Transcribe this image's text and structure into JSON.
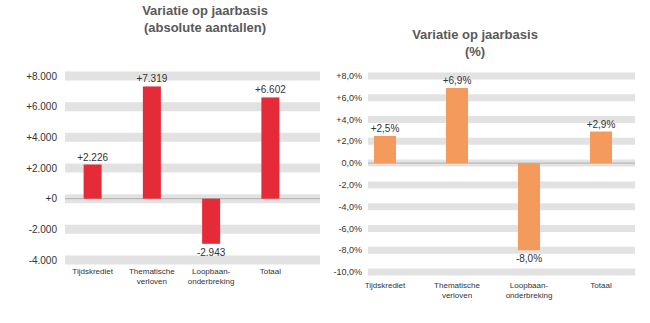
{
  "chart_data": [
    {
      "type": "bar",
      "title": "Variatie op jaarbasis",
      "subtitle": "(absolute aantallen)",
      "categories": [
        "Tijdskrediet",
        "Thematische verloven",
        "Loopbaan-onderbreking",
        "Totaal"
      ],
      "values": [
        2226,
        7319,
        -2943,
        6602
      ],
      "value_labels": [
        "+2.226",
        "+7.319",
        "-2.943",
        "+6.602"
      ],
      "color": "#e52b38",
      "ylim": [
        -4000,
        8000
      ],
      "yticks": [
        {
          "value": -4000,
          "label": "-4.000"
        },
        {
          "value": -2000,
          "label": "-2.000"
        },
        {
          "value": 0,
          "label": "+0"
        },
        {
          "value": 2000,
          "label": "+2.000"
        },
        {
          "value": 4000,
          "label": "+4.000"
        },
        {
          "value": 6000,
          "label": "+6.000"
        },
        {
          "value": 8000,
          "label": "+8.000"
        }
      ],
      "grid": true,
      "data_labels": true
    },
    {
      "type": "bar",
      "title": "Variatie op jaarbasis",
      "subtitle": "(%)",
      "categories": [
        "Tijdskrediet",
        "Thematische verloven",
        "Loopbaan-onderbreking",
        "Totaal"
      ],
      "values": [
        2.5,
        6.9,
        -8.0,
        2.9
      ],
      "value_labels": [
        "+2,5%",
        "+6,9%",
        "-8,0%",
        "+2,9%"
      ],
      "color": "#f39a5c",
      "ylim": [
        -10,
        8
      ],
      "yticks": [
        {
          "value": -10,
          "label": "-10,0%"
        },
        {
          "value": -8,
          "label": "-8,0%"
        },
        {
          "value": -6,
          "label": "-6,0%"
        },
        {
          "value": -4,
          "label": "-4,0%"
        },
        {
          "value": -2,
          "label": "-2,0%"
        },
        {
          "value": 0,
          "label": "0,0%"
        },
        {
          "value": 2,
          "label": "+2,0%"
        },
        {
          "value": 4,
          "label": "+4,0%"
        },
        {
          "value": 6,
          "label": "+6,0%"
        },
        {
          "value": 8,
          "label": "+8,0%"
        }
      ],
      "grid": true,
      "data_labels": true
    }
  ]
}
